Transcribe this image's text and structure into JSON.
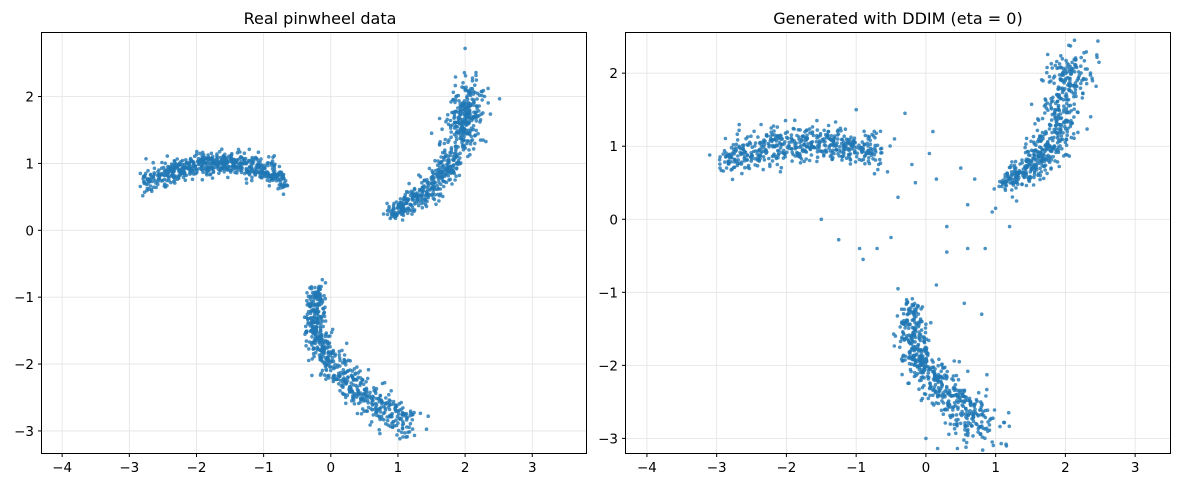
{
  "colors": {
    "point": "#1f77b4",
    "grid": "#e3e3e3"
  },
  "chart_data": [
    {
      "type": "scatter",
      "title": "Real pinwheel data",
      "xlabel": "",
      "ylabel": "",
      "xlim": [
        -4.3,
        3.8
      ],
      "ylim": [
        -3.33,
        2.95
      ],
      "xticks": [
        -4,
        -3,
        -2,
        -1,
        0,
        1,
        2,
        3
      ],
      "yticks": [
        -3,
        -2,
        -1,
        0,
        1,
        2
      ],
      "grid": true,
      "seed": 11,
      "noise_points": [
        [
          1.45,
          -2.78
        ],
        [
          1.15,
          -3.02
        ],
        [
          2.0,
          2.72
        ]
      ],
      "clusters": [
        {
          "name": "upper-left arm",
          "count": 620,
          "t0": 0.55,
          "t1": 2.95,
          "cx": -1.75,
          "cy": 1.0,
          "dx": 1.05,
          "arc": -0.28,
          "w": 0.09
        },
        {
          "name": "upper-right arm",
          "count": 620,
          "path": [
            [
              0.9,
              0.25
            ],
            [
              1.4,
              0.55
            ],
            [
              1.8,
              1.0
            ],
            [
              2.0,
              1.6
            ],
            [
              2.1,
              2.1
            ]
          ],
          "w": 0.09
        },
        {
          "name": "bottom arm",
          "count": 620,
          "path": [
            [
              -0.2,
              -0.85
            ],
            [
              -0.25,
              -1.5
            ],
            [
              0.0,
              -2.0
            ],
            [
              0.5,
              -2.5
            ],
            [
              1.2,
              -2.95
            ]
          ],
          "w": 0.09
        }
      ]
    },
    {
      "type": "scatter",
      "title": "Generated with DDIM (eta = 0)",
      "xlabel": "",
      "ylabel": "",
      "xlim": [
        -4.3,
        3.5
      ],
      "ylim": [
        -3.2,
        2.55
      ],
      "xticks": [
        -4,
        -3,
        -2,
        -1,
        0,
        1,
        2,
        3
      ],
      "yticks": [
        -3,
        -2,
        -1,
        0,
        1,
        2
      ],
      "grid": true,
      "seed": 29,
      "noise_points": [
        [
          -3.1,
          0.88
        ],
        [
          -2.8,
          0.85
        ],
        [
          -1.5,
          0.0
        ],
        [
          -1.25,
          -0.28
        ],
        [
          -0.9,
          -0.55
        ],
        [
          -0.7,
          -0.4
        ],
        [
          -0.95,
          -0.4
        ],
        [
          -0.5,
          -0.25
        ],
        [
          -0.4,
          0.3
        ],
        [
          -0.3,
          1.45
        ],
        [
          -0.45,
          1.1
        ],
        [
          -0.2,
          0.75
        ],
        [
          -0.15,
          0.5
        ],
        [
          0.1,
          1.2
        ],
        [
          0.05,
          0.9
        ],
        [
          0.15,
          0.55
        ],
        [
          0.3,
          -0.1
        ],
        [
          0.5,
          0.7
        ],
        [
          0.6,
          0.2
        ],
        [
          0.7,
          0.55
        ],
        [
          0.85,
          -0.4
        ],
        [
          0.95,
          0.1
        ],
        [
          1.05,
          0.45
        ],
        [
          0.55,
          -1.15
        ],
        [
          0.8,
          -1.3
        ],
        [
          0.6,
          -0.4
        ],
        [
          1.0,
          0.15
        ],
        [
          0.3,
          -0.45
        ],
        [
          0.15,
          -0.9
        ],
        [
          -0.4,
          -0.95
        ],
        [
          -0.05,
          -1.2
        ],
        [
          1.3,
          0.25
        ],
        [
          1.2,
          -0.1
        ],
        [
          0.0,
          -3.0
        ],
        [
          0.95,
          -3.05
        ],
        [
          1.15,
          -3.08
        ],
        [
          2.45,
          2.25
        ],
        [
          -1.0,
          1.5
        ],
        [
          -0.85,
          0.9
        ],
        [
          -0.55,
          0.65
        ]
      ],
      "clusters": [
        {
          "name": "upper-left arm",
          "count": 540,
          "t0": 0.55,
          "t1": 2.75,
          "cx": -1.8,
          "cy": 1.05,
          "dx": 1.15,
          "arc": -0.22,
          "w": 0.12
        },
        {
          "name": "upper-right arm",
          "count": 560,
          "path": [
            [
              1.1,
              0.5
            ],
            [
              1.5,
              0.7
            ],
            [
              1.8,
              1.0
            ],
            [
              1.95,
              1.55
            ],
            [
              2.1,
              2.2
            ]
          ],
          "w": 0.11
        },
        {
          "name": "bottom arm",
          "count": 560,
          "path": [
            [
              -0.2,
              -1.2
            ],
            [
              -0.2,
              -1.7
            ],
            [
              0.0,
              -2.1
            ],
            [
              0.45,
              -2.5
            ],
            [
              0.8,
              -2.85
            ]
          ],
          "w": 0.12
        }
      ]
    }
  ]
}
